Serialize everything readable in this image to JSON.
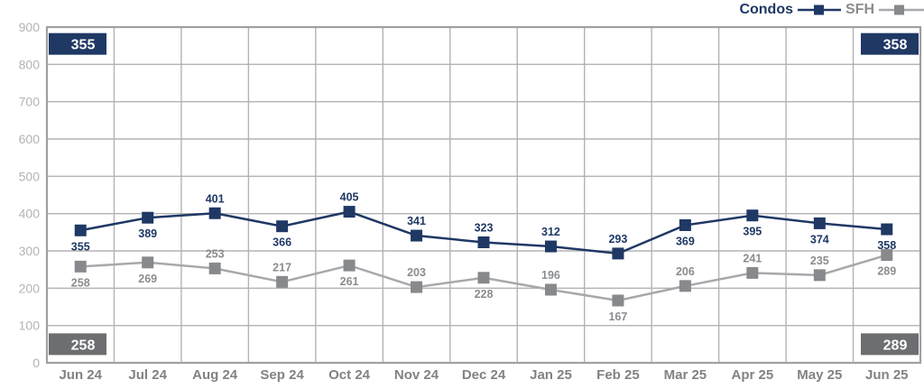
{
  "chart_data": {
    "type": "line",
    "categories": [
      "Jun 24",
      "Jul 24",
      "Aug 24",
      "Sep 24",
      "Oct 24",
      "Nov 24",
      "Dec 24",
      "Jan 25",
      "Feb 25",
      "Mar 25",
      "Apr 25",
      "May 25",
      "Jun 25"
    ],
    "series": [
      {
        "name": "Condos",
        "values": [
          355,
          389,
          401,
          366,
          405,
          341,
          323,
          312,
          293,
          369,
          395,
          374,
          358
        ],
        "label_side": [
          "below",
          "below",
          "above",
          "below",
          "above",
          "above",
          "above",
          "above",
          "above",
          "below",
          "below",
          "below",
          "below"
        ],
        "line_color": "#1f3864",
        "marker_color": "#1f3864",
        "label_color": "#1f3864"
      },
      {
        "name": "SFH",
        "values": [
          258,
          269,
          253,
          217,
          261,
          203,
          228,
          196,
          167,
          206,
          241,
          235,
          289
        ],
        "label_side": [
          "below",
          "below",
          "above",
          "above",
          "below",
          "above",
          "below",
          "above",
          "below",
          "above",
          "above",
          "above",
          "below"
        ],
        "line_color": "#a6a8ab",
        "marker_color": "#87898c",
        "label_color": "#8a8c8f"
      }
    ],
    "title": "",
    "xlabel": "",
    "ylabel": "",
    "ylim": [
      0,
      900
    ],
    "ytick_step": 100,
    "grid": true,
    "legend_position": "top-right",
    "callouts": {
      "condos_first": "355",
      "condos_last": "358",
      "sfh_first": "258",
      "sfh_last": "289",
      "condos_badge_color": "#1f3864",
      "sfh_badge_color": "#6d6e71",
      "badge_text_color": "#ffffff"
    }
  },
  "colors": {
    "background": "#ffffff",
    "grid": "#b3b3b5",
    "border": "#9ea0a3",
    "ytick_text": "#b4b4b6",
    "xlabel_text": "#808285"
  }
}
